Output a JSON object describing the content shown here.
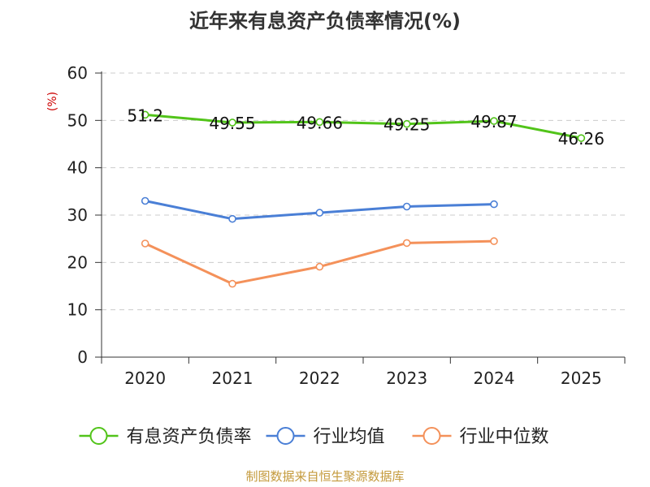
{
  "chart_data": {
    "type": "line",
    "title": "近年来有息资产负债率情况(%)",
    "y_unit": "(%)",
    "categories": [
      "2020",
      "2021",
      "2022",
      "2023",
      "2024",
      "2025"
    ],
    "ylim": [
      0,
      60
    ],
    "yticks": [
      "0",
      "10",
      "20",
      "30",
      "40",
      "50",
      "60"
    ],
    "grid": true,
    "legend_position": "bottom",
    "series": [
      {
        "name": "有息资产负债率",
        "color": "#52c41a",
        "values": [
          51.2,
          49.55,
          49.66,
          49.25,
          49.87,
          46.26
        ],
        "labels": [
          "51.2",
          "49.55",
          "49.66",
          "49.25",
          "49.87",
          "46.26"
        ]
      },
      {
        "name": "行业均值",
        "color": "#4a7fd6",
        "values": [
          33.0,
          29.2,
          30.5,
          31.8,
          32.3,
          null
        ]
      },
      {
        "name": "行业中位数",
        "color": "#f4915a",
        "values": [
          24.0,
          15.5,
          19.1,
          24.1,
          24.5,
          null
        ]
      }
    ],
    "source": "制图数据来自恒生聚源数据库"
  }
}
